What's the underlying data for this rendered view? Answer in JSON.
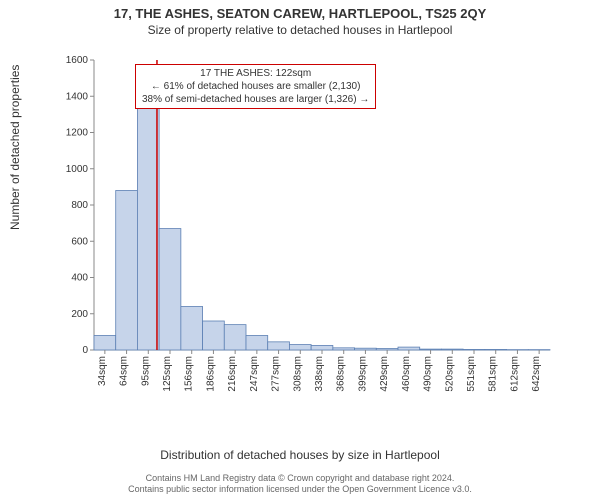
{
  "title": "17, THE ASHES, SEATON CAREW, HARTLEPOOL, TS25 2QY",
  "subtitle": "Size of property relative to detached houses in Hartlepool",
  "y_axis_label": "Number of detached properties",
  "x_axis_label": "Distribution of detached houses by size in Hartlepool",
  "footer_line1": "Contains HM Land Registry data © Crown copyright and database right 2024.",
  "footer_line2": "Contains public sector information licensed under the Open Government Licence v3.0.",
  "callout_line1": "17 THE ASHES: 122sqm",
  "callout_line2": "← 61% of detached houses are smaller (2,130)",
  "callout_line3": "38% of semi-detached houses are larger (1,326) →",
  "chart": {
    "type": "histogram",
    "ylim": [
      0,
      1600
    ],
    "ytick_step": 200,
    "yticks": [
      0,
      200,
      400,
      600,
      800,
      1000,
      1200,
      1400,
      1600
    ],
    "x_labels": [
      "34sqm",
      "64sqm",
      "95sqm",
      "125sqm",
      "156sqm",
      "186sqm",
      "216sqm",
      "247sqm",
      "277sqm",
      "308sqm",
      "338sqm",
      "368sqm",
      "399sqm",
      "429sqm",
      "460sqm",
      "490sqm",
      "520sqm",
      "551sqm",
      "581sqm",
      "612sqm",
      "642sqm"
    ],
    "values": [
      80,
      880,
      1380,
      670,
      240,
      160,
      140,
      80,
      45,
      30,
      25,
      12,
      10,
      8,
      16,
      5,
      5,
      3,
      3,
      2,
      2
    ],
    "bar_fill": "#c6d4ea",
    "bar_stroke": "#5b7fb3",
    "bar_stroke_width": 0.8,
    "marker_line_color": "#cc0000",
    "marker_line_width": 1.5,
    "marker_x_index": 2.9,
    "axis_color": "#888888",
    "tick_font_size": 10,
    "background_color": "#ffffff",
    "callout_border_color": "#cc0000"
  }
}
